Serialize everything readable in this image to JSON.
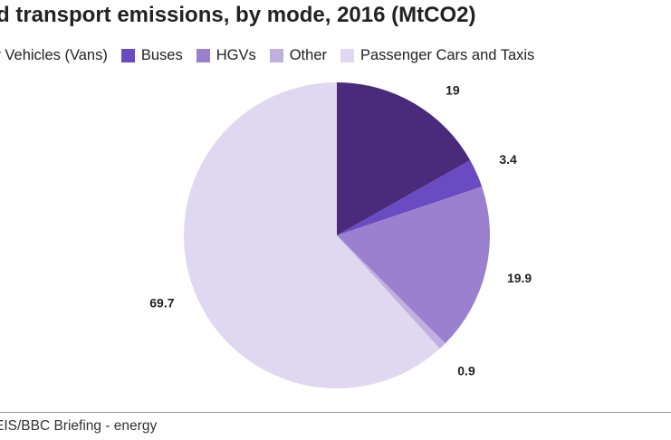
{
  "chart_data": {
    "type": "pie",
    "title": "d transport emissions, by mode, 2016 (MtCO2)",
    "legend_position": "top",
    "slices": [
      {
        "name": "ty Vehicles (Vans)",
        "value": 19,
        "label": "19",
        "color": "#4a2a7a"
      },
      {
        "name": "Buses",
        "value": 3.4,
        "label": "3.4",
        "color": "#6a4bc2"
      },
      {
        "name": "HGVs",
        "value": 19.9,
        "label": "19.9",
        "color": "#9b80d0"
      },
      {
        "name": "Other",
        "value": 0.9,
        "label": "0.9",
        "color": "#bfb0e0"
      },
      {
        "name": "Passenger Cars and Taxis",
        "value": 69.7,
        "label": "69.7",
        "color": "#e0d8f0"
      }
    ]
  },
  "footer": {
    "source": "EIS/BBC Briefing - energy"
  }
}
